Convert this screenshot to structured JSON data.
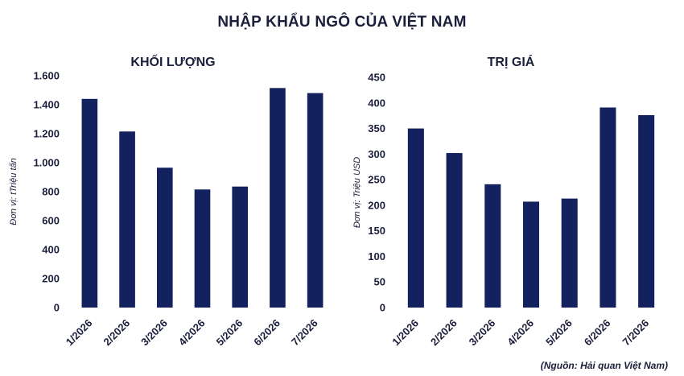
{
  "title": "NHẬP KHẨU NGÔ CỦA VIỆT NAM",
  "source": "(Nguồn: Hải quan Việt Nam)",
  "colors": {
    "bar": "#13215e",
    "text": "#1b1f3b"
  },
  "chart_data": [
    {
      "type": "bar",
      "title": "KHỐI LƯỢNG",
      "ylabel": "Đơn vị: tTriệu tấn",
      "xlabel": "",
      "categories": [
        "1/2026",
        "2/2026",
        "3/2026",
        "4/2026",
        "5/2026",
        "6/2026",
        "7/2026"
      ],
      "values": [
        1440,
        1215,
        965,
        815,
        835,
        1515,
        1480
      ],
      "ylim": [
        0,
        1600
      ],
      "yticks": [
        0,
        200,
        400,
        600,
        800,
        1000,
        1200,
        1400,
        1600
      ],
      "ytick_labels": [
        "0",
        "200",
        "400",
        "600",
        "800",
        "1.000",
        "1.200",
        "1.400",
        "1.600"
      ],
      "grid": false,
      "legend": "none"
    },
    {
      "type": "bar",
      "title": "TRỊ GIÁ",
      "ylabel": "Đơn vị: Triệu USD",
      "xlabel": "",
      "categories": [
        "1/2026",
        "2/2026",
        "3/2026",
        "4/2026",
        "5/2026",
        "6/2026",
        "7/2026"
      ],
      "values": [
        350,
        302,
        241,
        207,
        213,
        391,
        376
      ],
      "ylim": [
        0,
        450
      ],
      "yticks": [
        0,
        50,
        100,
        150,
        200,
        250,
        300,
        350,
        400,
        450
      ],
      "ytick_labels": [
        "0",
        "50",
        "100",
        "150",
        "200",
        "250",
        "300",
        "350",
        "400",
        "450"
      ],
      "grid": false,
      "legend": "none"
    }
  ]
}
